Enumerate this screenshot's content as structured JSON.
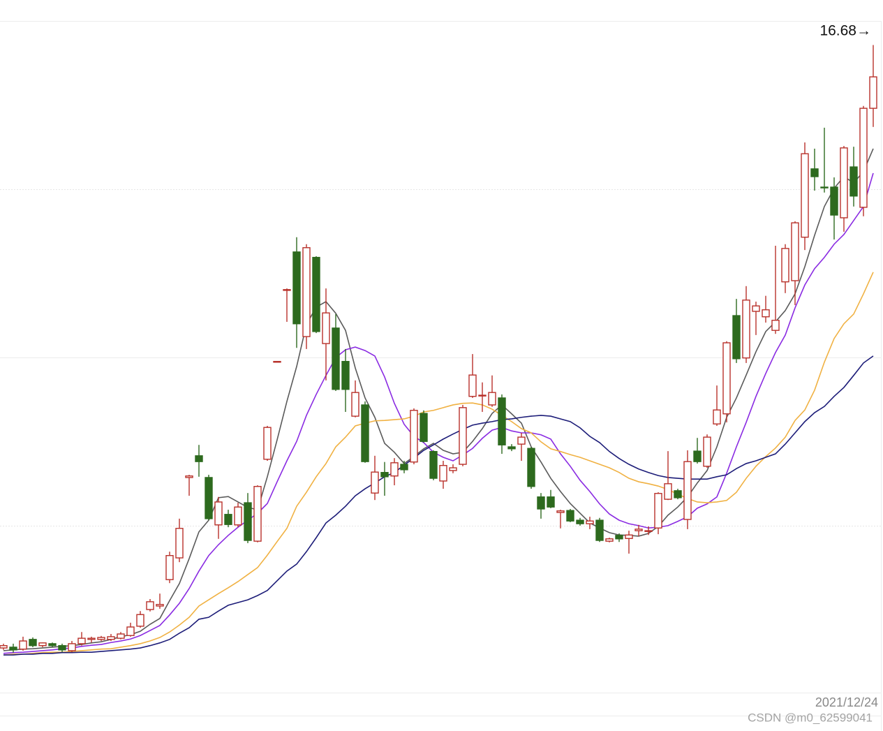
{
  "chart_data": {
    "type": "candlestick",
    "high_label": "16.68→",
    "categories": [
      null,
      null,
      null,
      null,
      null,
      null,
      null,
      null,
      null,
      null,
      null,
      null,
      null,
      null,
      null,
      null,
      null,
      null,
      null,
      null,
      null,
      null,
      null,
      null,
      null,
      null,
      null,
      null,
      null,
      null,
      null,
      null,
      null,
      null,
      null,
      null,
      null,
      null,
      null,
      null,
      null,
      null,
      null,
      null,
      null,
      null,
      null,
      null,
      null,
      null,
      null,
      null,
      null,
      null,
      null,
      null,
      null,
      null,
      null,
      null,
      null,
      null,
      null,
      null,
      null,
      null,
      null,
      null,
      null,
      null,
      null,
      null,
      null,
      null,
      null,
      null,
      null,
      null,
      null,
      null,
      null,
      null,
      null,
      null,
      null,
      null,
      null,
      null,
      null,
      "2021/12/24"
    ],
    "open": [
      1.15,
      1.17,
      1.12,
      1.37,
      1.21,
      1.26,
      1.21,
      1.08,
      1.26,
      1.37,
      1.37,
      1.37,
      1.4,
      1.47,
      1.71,
      2.14,
      2.23,
      2.91,
      3.47,
      5.54,
      6.1,
      5.54,
      4.32,
      4.59,
      4.32,
      4.89,
      3.9,
      6.01,
      8.51,
      10.36,
      11.35,
      9.17,
      11.21,
      8.99,
      9.39,
      8.53,
      7.12,
      7.41,
      5.14,
      5.67,
      5.58,
      5.88,
      5.94,
      7.19,
      6.21,
      5.45,
      5.72,
      5.88,
      7.63,
      7.64,
      7.41,
      7.59,
      6.33,
      6.4,
      6.29,
      5.04,
      5.04,
      4.64,
      4.69,
      4.44,
      4.35,
      4.44,
      3.9,
      4.05,
      3.97,
      4.17,
      4.15,
      4.24,
      4.98,
      5.2,
      4.46,
      6.22,
      5.83,
      6.92,
      7.18,
      9.71,
      8.62,
      9.82,
      9.68,
      9.33,
      10.58,
      10.61,
      11.73,
      13.49,
      13.02,
      13.02,
      12.23,
      13.54,
      12.5,
      15.05
    ],
    "high": [
      1.26,
      1.26,
      1.44,
      1.42,
      1.29,
      1.29,
      1.26,
      1.33,
      1.56,
      1.44,
      1.46,
      1.51,
      1.56,
      1.8,
      2.1,
      2.41,
      2.55,
      3.63,
      4.48,
      5.61,
      6.38,
      5.61,
      5.04,
      4.71,
      4.89,
      5.14,
      5.34,
      6.87,
      8.54,
      10.41,
      11.73,
      11.55,
      11.24,
      10.41,
      9.75,
      8.85,
      8.04,
      7.5,
      6.1,
      5.94,
      6.04,
      5.97,
      7.32,
      7.27,
      6.24,
      5.97,
      5.88,
      7.41,
      8.72,
      7.99,
      8.17,
      7.68,
      6.4,
      6.69,
      6.33,
      5.14,
      5.22,
      4.71,
      4.73,
      4.5,
      4.53,
      4.5,
      3.99,
      4.1,
      4.17,
      4.32,
      4.28,
      5.16,
      6.22,
      5.25,
      6.24,
      6.56,
      6.65,
      7.91,
      9.05,
      10.14,
      10.47,
      10.07,
      10.22,
      11.51,
      11.55,
      12.14,
      14.17,
      14.01,
      14.55,
      13.27,
      14.08,
      14.06,
      15.11,
      16.68
    ],
    "low": [
      1.1,
      1.03,
      1.08,
      1.17,
      1.17,
      1.17,
      1.04,
      1.04,
      1.21,
      1.29,
      1.33,
      1.33,
      1.37,
      1.44,
      1.67,
      2.09,
      2.16,
      2.82,
      3.36,
      5.07,
      5.56,
      4.44,
      3.96,
      4.26,
      4.26,
      3.85,
      3.87,
      5.97,
      8.51,
      9.55,
      8.88,
      8.85,
      9.26,
      8.04,
      7.77,
      7.23,
      7.09,
      5.92,
      4.96,
      5.07,
      5.34,
      5.65,
      5.88,
      6.44,
      5.47,
      5.25,
      5.65,
      5.83,
      7.59,
      7.23,
      7.36,
      6.15,
      6.22,
      5.97,
      5.25,
      4.48,
      4.75,
      4.23,
      4.39,
      4.3,
      4.21,
      3.88,
      3.87,
      3.88,
      3.58,
      4.03,
      4.06,
      4.08,
      4.96,
      4.98,
      4.21,
      5.9,
      5.79,
      6.87,
      6.96,
      8.49,
      8.49,
      9.21,
      9.53,
      9.24,
      10.29,
      9.98,
      11.4,
      12.93,
      12.88,
      11.67,
      11.87,
      12.52,
      12.27,
      14.57
    ],
    "close": [
      1.21,
      1.1,
      1.33,
      1.21,
      1.28,
      1.21,
      1.1,
      1.26,
      1.4,
      1.4,
      1.42,
      1.44,
      1.51,
      1.69,
      2.01,
      2.34,
      2.27,
      3.53,
      4.23,
      5.58,
      5.95,
      4.48,
      4.91,
      4.33,
      4.78,
      3.92,
      5.31,
      6.83,
      8.53,
      10.38,
      9.5,
      11.46,
      9.3,
      9.78,
      7.81,
      7.81,
      7.73,
      5.95,
      5.68,
      5.56,
      5.92,
      5.74,
      7.27,
      6.47,
      5.52,
      5.85,
      5.79,
      7.34,
      8.18,
      7.66,
      7.73,
      6.38,
      6.28,
      6.58,
      5.31,
      4.73,
      4.78,
      4.68,
      4.42,
      4.35,
      4.42,
      3.92,
      3.96,
      3.96,
      4.06,
      4.21,
      4.17,
      5.13,
      5.38,
      5.02,
      5.95,
      5.95,
      6.58,
      7.28,
      9.01,
      8.6,
      10.11,
      9.96,
      9.86,
      9.59,
      11.44,
      12.1,
      13.88,
      13.29,
      13.0,
      12.3,
      14.03,
      12.79,
      15.05,
      15.86
    ],
    "up_color": "#b8312a",
    "down_color": "#2d6a1e",
    "lines": [
      {
        "color": "#5a5a5a",
        "values": [
          1.08,
          1.1,
          1.12,
          1.13,
          1.15,
          1.17,
          1.19,
          1.21,
          1.24,
          1.28,
          1.31,
          1.37,
          1.44,
          1.49,
          1.58,
          1.76,
          1.91,
          2.37,
          2.81,
          3.45,
          4.14,
          4.44,
          5.02,
          5.05,
          4.91,
          4.77,
          4.71,
          5.56,
          6.51,
          7.5,
          8.4,
          9.48,
          9.93,
          10.07,
          9.77,
          9.33,
          8.36,
          7.59,
          7.09,
          6.42,
          6.19,
          5.9,
          6.08,
          6.28,
          6.42,
          6.24,
          6.15,
          6.19,
          6.47,
          6.8,
          7.19,
          7.41,
          7.18,
          6.94,
          6.33,
          5.94,
          5.52,
          5.18,
          4.87,
          4.62,
          4.37,
          4.24,
          4.12,
          4.06,
          4.05,
          4.03,
          4.1,
          4.28,
          4.57,
          4.78,
          5.04,
          5.4,
          5.72,
          6.33,
          7.09,
          7.59,
          8.18,
          8.78,
          9.3,
          9.55,
          9.84,
          10.27,
          10.97,
          11.78,
          12.52,
          12.99,
          13.29,
          13.13,
          13.42,
          14.01
        ]
      },
      {
        "color": "#8a2be2",
        "values": [
          1.01,
          1.03,
          1.04,
          1.06,
          1.08,
          1.1,
          1.13,
          1.15,
          1.19,
          1.22,
          1.24,
          1.29,
          1.33,
          1.38,
          1.47,
          1.6,
          1.73,
          2.0,
          2.3,
          2.68,
          3.13,
          3.53,
          3.81,
          4.05,
          4.26,
          4.44,
          4.62,
          4.87,
          5.43,
          5.97,
          6.47,
          7.14,
          7.68,
          8.17,
          8.63,
          8.83,
          8.9,
          8.81,
          8.67,
          8.13,
          7.45,
          6.91,
          6.6,
          6.44,
          6.19,
          6.06,
          5.97,
          6.12,
          6.29,
          6.55,
          6.76,
          6.83,
          6.74,
          6.69,
          6.69,
          6.64,
          6.53,
          6.15,
          5.83,
          5.47,
          5.18,
          4.86,
          4.6,
          4.44,
          4.35,
          4.3,
          4.24,
          4.26,
          4.3,
          4.41,
          4.53,
          4.75,
          4.86,
          5.04,
          5.65,
          6.33,
          6.96,
          7.63,
          8.22,
          8.76,
          9.21,
          9.91,
          10.5,
          10.92,
          11.21,
          11.55,
          11.8,
          12.16,
          12.52,
          13.38
        ]
      },
      {
        "color": "#f0b142",
        "values": [
          0.97,
          0.99,
          0.99,
          1.01,
          1.03,
          1.04,
          1.04,
          1.06,
          1.08,
          1.1,
          1.12,
          1.13,
          1.17,
          1.21,
          1.26,
          1.33,
          1.42,
          1.56,
          1.74,
          1.94,
          2.23,
          2.39,
          2.55,
          2.7,
          2.86,
          3.04,
          3.22,
          3.54,
          3.89,
          4.23,
          4.8,
          5.16,
          5.56,
          5.9,
          6.33,
          6.58,
          6.87,
          6.94,
          7.0,
          7.01,
          7.03,
          7.05,
          7.12,
          7.23,
          7.27,
          7.34,
          7.41,
          7.45,
          7.46,
          7.41,
          7.3,
          7.14,
          6.98,
          6.8,
          6.69,
          6.46,
          6.28,
          6.21,
          6.13,
          6.06,
          5.97,
          5.88,
          5.79,
          5.67,
          5.52,
          5.43,
          5.38,
          5.32,
          5.23,
          5.11,
          5.0,
          4.91,
          4.89,
          4.91,
          4.95,
          5.16,
          5.52,
          5.83,
          6.08,
          6.3,
          6.58,
          7.01,
          7.28,
          7.79,
          8.51,
          9.12,
          9.5,
          9.75,
          10.27,
          10.83
        ]
      },
      {
        "color": "#1c1c78",
        "values": [
          0.97,
          0.97,
          0.99,
          0.99,
          1.01,
          1.01,
          1.03,
          1.03,
          1.04,
          1.04,
          1.06,
          1.08,
          1.1,
          1.12,
          1.15,
          1.21,
          1.28,
          1.37,
          1.53,
          1.67,
          1.89,
          1.94,
          2.1,
          2.25,
          2.32,
          2.39,
          2.5,
          2.63,
          2.88,
          3.13,
          3.31,
          3.63,
          3.99,
          4.37,
          4.57,
          4.8,
          5.07,
          5.25,
          5.4,
          5.56,
          5.67,
          5.86,
          6.04,
          6.24,
          6.38,
          6.53,
          6.66,
          6.78,
          6.89,
          6.94,
          6.98,
          7.03,
          7.05,
          7.09,
          7.12,
          7.14,
          7.12,
          7.05,
          6.98,
          6.82,
          6.6,
          6.44,
          6.21,
          6.03,
          5.88,
          5.76,
          5.67,
          5.59,
          5.54,
          5.52,
          5.5,
          5.5,
          5.5,
          5.56,
          5.61,
          5.77,
          5.9,
          5.97,
          6.06,
          6.15,
          6.4,
          6.69,
          6.98,
          7.21,
          7.37,
          7.63,
          7.86,
          8.17,
          8.49,
          8.67
        ]
      }
    ],
    "ylim": [
      0,
      17.3
    ]
  },
  "watermark": "CSDN @m0_62599041"
}
